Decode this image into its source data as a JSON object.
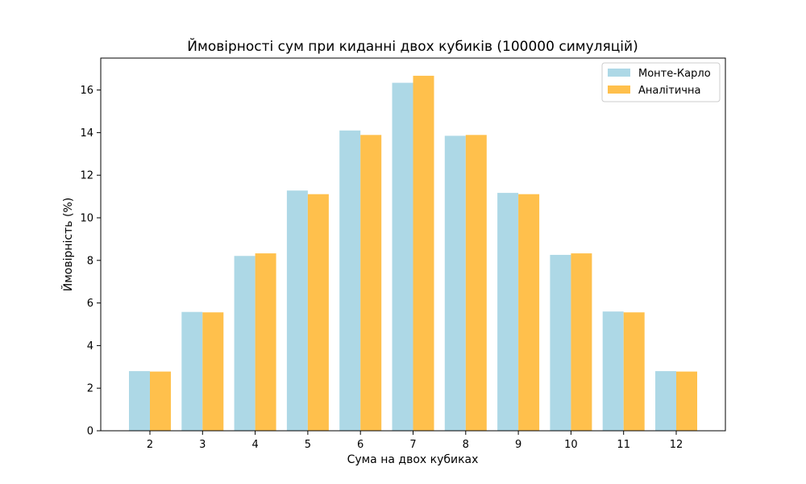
{
  "chart_data": {
    "type": "bar",
    "title": "Ймовірності сум при киданні двох кубиків (100000 симуляцій)",
    "xlabel": "Сума на двох кубиках",
    "ylabel": "Ймовірність (%)",
    "categories": [
      "2",
      "3",
      "4",
      "5",
      "6",
      "7",
      "8",
      "9",
      "10",
      "11",
      "12"
    ],
    "ylim": [
      0,
      17.5
    ],
    "yticks": [
      0,
      2,
      4,
      6,
      8,
      10,
      12,
      14,
      16
    ],
    "series": [
      {
        "name": "Монте-Карло",
        "color": "#add8e6",
        "values": [
          2.8,
          5.58,
          8.21,
          11.28,
          14.1,
          16.34,
          13.85,
          11.17,
          8.26,
          5.6,
          2.8
        ]
      },
      {
        "name": "Аналітична",
        "color": "#ffc04c",
        "values": [
          2.78,
          5.56,
          8.33,
          11.11,
          13.89,
          16.67,
          13.89,
          11.11,
          8.33,
          5.56,
          2.78
        ]
      }
    ],
    "legend_position": "top-right",
    "grid": false
  }
}
